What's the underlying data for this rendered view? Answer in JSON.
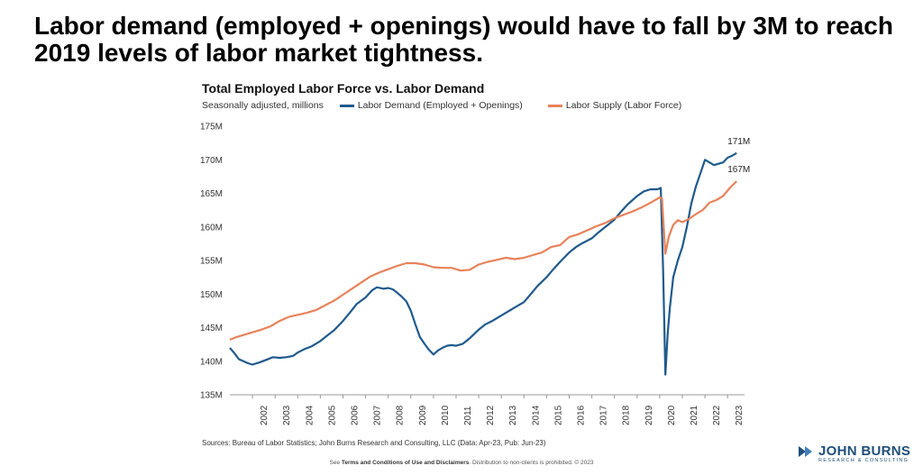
{
  "headline": "Labor demand (employed + openings) would have to fall by 3M to reach 2019 levels of labor market tightness.",
  "chart_data": {
    "type": "line",
    "title": "Total Employed Labor Force vs. Labor Demand",
    "subtitle": "Seasonally adjusted, millions",
    "xlabel": "",
    "ylabel": "",
    "xlim": [
      2001.0,
      2023.75
    ],
    "ylim": [
      135,
      175
    ],
    "y_ticks": [
      135,
      140,
      145,
      150,
      155,
      160,
      165,
      170,
      175
    ],
    "y_tick_labels": [
      "135M",
      "140M",
      "145M",
      "150M",
      "155M",
      "160M",
      "165M",
      "170M",
      "175M"
    ],
    "x_ticks": [
      2002,
      2003,
      2004,
      2005,
      2006,
      2007,
      2008,
      2009,
      2010,
      2011,
      2012,
      2013,
      2014,
      2015,
      2016,
      2017,
      2018,
      2019,
      2020,
      2021,
      2022,
      2023
    ],
    "grid": false,
    "series": [
      {
        "name": "Labor Demand (Employed + Openings)",
        "color": "#1f5a8c",
        "end_label": "171M",
        "points": [
          [
            2001.0,
            142.0
          ],
          [
            2001.2,
            141.2
          ],
          [
            2001.4,
            140.3
          ],
          [
            2001.6,
            140.0
          ],
          [
            2001.8,
            139.7
          ],
          [
            2002.0,
            139.5
          ],
          [
            2002.3,
            139.8
          ],
          [
            2002.6,
            140.2
          ],
          [
            2002.9,
            140.6
          ],
          [
            2003.2,
            140.5
          ],
          [
            2003.5,
            140.6
          ],
          [
            2003.8,
            140.8
          ],
          [
            2004.0,
            141.3
          ],
          [
            2004.3,
            141.8
          ],
          [
            2004.6,
            142.2
          ],
          [
            2005.0,
            143.0
          ],
          [
            2005.3,
            143.8
          ],
          [
            2005.6,
            144.6
          ],
          [
            2006.0,
            146.0
          ],
          [
            2006.3,
            147.2
          ],
          [
            2006.6,
            148.5
          ],
          [
            2007.0,
            149.5
          ],
          [
            2007.3,
            150.6
          ],
          [
            2007.5,
            151.0
          ],
          [
            2007.8,
            150.8
          ],
          [
            2008.0,
            150.9
          ],
          [
            2008.2,
            150.7
          ],
          [
            2008.4,
            150.2
          ],
          [
            2008.6,
            149.6
          ],
          [
            2008.8,
            148.9
          ],
          [
            2009.0,
            147.5
          ],
          [
            2009.2,
            145.5
          ],
          [
            2009.4,
            143.6
          ],
          [
            2009.6,
            142.6
          ],
          [
            2009.8,
            141.7
          ],
          [
            2010.0,
            141.0
          ],
          [
            2010.2,
            141.6
          ],
          [
            2010.4,
            142.0
          ],
          [
            2010.6,
            142.3
          ],
          [
            2010.8,
            142.4
          ],
          [
            2011.0,
            142.3
          ],
          [
            2011.3,
            142.6
          ],
          [
            2011.6,
            143.4
          ],
          [
            2012.0,
            144.7
          ],
          [
            2012.3,
            145.5
          ],
          [
            2012.6,
            146.0
          ],
          [
            2013.0,
            146.8
          ],
          [
            2013.3,
            147.4
          ],
          [
            2013.6,
            148.0
          ],
          [
            2014.0,
            148.8
          ],
          [
            2014.3,
            150.0
          ],
          [
            2014.6,
            151.2
          ],
          [
            2015.0,
            152.5
          ],
          [
            2015.3,
            153.7
          ],
          [
            2015.6,
            154.8
          ],
          [
            2016.0,
            156.2
          ],
          [
            2016.3,
            157.0
          ],
          [
            2016.6,
            157.6
          ],
          [
            2017.0,
            158.3
          ],
          [
            2017.3,
            159.2
          ],
          [
            2017.6,
            160.0
          ],
          [
            2018.0,
            161.1
          ],
          [
            2018.3,
            162.3
          ],
          [
            2018.6,
            163.4
          ],
          [
            2019.0,
            164.6
          ],
          [
            2019.3,
            165.3
          ],
          [
            2019.6,
            165.6
          ],
          [
            2019.9,
            165.6
          ],
          [
            2020.05,
            165.8
          ],
          [
            2020.15,
            154.0
          ],
          [
            2020.25,
            138.0
          ],
          [
            2020.35,
            144.0
          ],
          [
            2020.45,
            148.0
          ],
          [
            2020.6,
            152.5
          ],
          [
            2020.8,
            155.0
          ],
          [
            2021.0,
            157.0
          ],
          [
            2021.2,
            160.0
          ],
          [
            2021.4,
            163.5
          ],
          [
            2021.6,
            166.0
          ],
          [
            2021.8,
            168.0
          ],
          [
            2022.0,
            170.0
          ],
          [
            2022.2,
            169.6
          ],
          [
            2022.4,
            169.2
          ],
          [
            2022.6,
            169.4
          ],
          [
            2022.8,
            169.6
          ],
          [
            2023.0,
            170.3
          ],
          [
            2023.2,
            170.6
          ],
          [
            2023.4,
            171.0
          ]
        ]
      },
      {
        "name": "Labor Supply (Labor Force)",
        "color": "#e8825a",
        "end_label": "167M",
        "points": [
          [
            2001.0,
            143.2
          ],
          [
            2001.3,
            143.6
          ],
          [
            2001.6,
            143.9
          ],
          [
            2002.0,
            144.3
          ],
          [
            2002.4,
            144.7
          ],
          [
            2002.8,
            145.2
          ],
          [
            2003.2,
            146.0
          ],
          [
            2003.6,
            146.6
          ],
          [
            2004.0,
            146.9
          ],
          [
            2004.4,
            147.2
          ],
          [
            2004.8,
            147.6
          ],
          [
            2005.2,
            148.3
          ],
          [
            2005.6,
            149.0
          ],
          [
            2006.0,
            149.9
          ],
          [
            2006.4,
            150.8
          ],
          [
            2006.8,
            151.7
          ],
          [
            2007.2,
            152.6
          ],
          [
            2007.6,
            153.2
          ],
          [
            2008.0,
            153.7
          ],
          [
            2008.4,
            154.2
          ],
          [
            2008.8,
            154.6
          ],
          [
            2009.2,
            154.6
          ],
          [
            2009.6,
            154.4
          ],
          [
            2010.0,
            154.0
          ],
          [
            2010.4,
            153.9
          ],
          [
            2010.8,
            153.9
          ],
          [
            2011.2,
            153.5
          ],
          [
            2011.6,
            153.6
          ],
          [
            2012.0,
            154.4
          ],
          [
            2012.4,
            154.8
          ],
          [
            2012.8,
            155.1
          ],
          [
            2013.2,
            155.4
          ],
          [
            2013.6,
            155.2
          ],
          [
            2014.0,
            155.4
          ],
          [
            2014.4,
            155.8
          ],
          [
            2014.8,
            156.2
          ],
          [
            2015.2,
            157.0
          ],
          [
            2015.6,
            157.3
          ],
          [
            2016.0,
            158.5
          ],
          [
            2016.4,
            158.9
          ],
          [
            2016.8,
            159.5
          ],
          [
            2017.2,
            160.1
          ],
          [
            2017.6,
            160.6
          ],
          [
            2018.0,
            161.3
          ],
          [
            2018.4,
            161.8
          ],
          [
            2018.8,
            162.3
          ],
          [
            2019.2,
            162.9
          ],
          [
            2019.6,
            163.6
          ],
          [
            2020.0,
            164.4
          ],
          [
            2020.1,
            164.2
          ],
          [
            2020.25,
            156.0
          ],
          [
            2020.4,
            158.5
          ],
          [
            2020.6,
            160.3
          ],
          [
            2020.8,
            161.0
          ],
          [
            2021.0,
            160.7
          ],
          [
            2021.3,
            161.2
          ],
          [
            2021.6,
            161.9
          ],
          [
            2021.9,
            162.5
          ],
          [
            2022.2,
            163.6
          ],
          [
            2022.5,
            164.0
          ],
          [
            2022.8,
            164.6
          ],
          [
            2023.1,
            165.8
          ],
          [
            2023.4,
            166.8
          ]
        ]
      }
    ]
  },
  "sources": "Sources: Bureau of Labor Statistics; John Burns Research and Consulting, LLC (Data: Apr-23, Pub: Jun-23)",
  "footer": {
    "prefix": "See ",
    "link": "Terms and Conditions of Use and Disclaimers",
    "suffix": ". Distribution to non-clients is prohibited. © 2023"
  },
  "logo": {
    "name": "JOHN BURNS",
    "tagline": "RESEARCH & CONSULTING",
    "color": "#1f4e79"
  }
}
